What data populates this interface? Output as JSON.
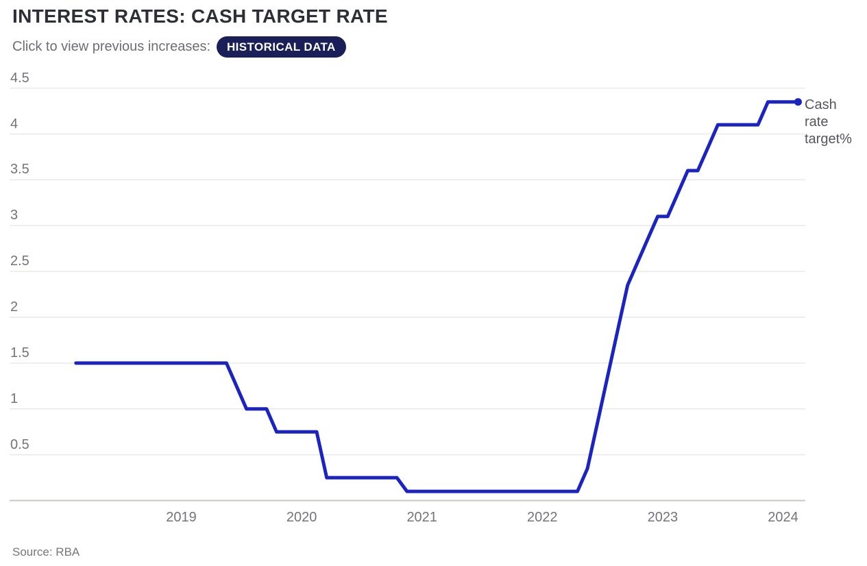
{
  "header": {
    "title": "INTEREST RATES: CASH TARGET RATE",
    "subtitle": "Click to view previous increases:",
    "button_label": "HISTORICAL DATA"
  },
  "annotation": {
    "label": "Cash rate target%",
    "lines": [
      "Cash",
      "rate",
      "target%"
    ]
  },
  "footer": {
    "source": "Source: RBA"
  },
  "colors": {
    "background": "#ffffff",
    "line": "#1b24c0",
    "dot": "#1b24c0",
    "button_bg": "#1a1f58",
    "button_text": "#ffffff",
    "title_text": "#2e2e36",
    "subtitle_text": "#6d6d75",
    "tick_label": "#73737b",
    "annotation_text": "#54545c",
    "source_text": "#75757d",
    "gridline": "#e9e9e6",
    "axis_line": "#c9c9c0"
  },
  "chart_data": {
    "type": "line",
    "title": "Interest rates: cash target rate",
    "xlabel": "",
    "ylabel": "Cash rate target %",
    "unit": "%",
    "ylim": [
      0,
      4.5
    ],
    "grid": true,
    "legend_position": "right-annotation",
    "x_ticks": [
      "2019",
      "2020",
      "2021",
      "2022",
      "2023",
      "2024"
    ],
    "y_ticks": [
      "0.5",
      "1",
      "1.5",
      "2",
      "2.5",
      "3",
      "3.5",
      "4",
      "4.5"
    ],
    "series": [
      {
        "name": "Cash rate target%",
        "points": [
          [
            "2018-02",
            1.5
          ],
          [
            "2018-03",
            1.5
          ],
          [
            "2018-04",
            1.5
          ],
          [
            "2018-05",
            1.5
          ],
          [
            "2018-06",
            1.5
          ],
          [
            "2018-07",
            1.5
          ],
          [
            "2018-08",
            1.5
          ],
          [
            "2018-09",
            1.5
          ],
          [
            "2018-10",
            1.5
          ],
          [
            "2018-11",
            1.5
          ],
          [
            "2018-12",
            1.5
          ],
          [
            "2019-01",
            1.5
          ],
          [
            "2019-02",
            1.5
          ],
          [
            "2019-03",
            1.5
          ],
          [
            "2019-04",
            1.5
          ],
          [
            "2019-05",
            1.5
          ],
          [
            "2019-06",
            1.25
          ],
          [
            "2019-07",
            1.0
          ],
          [
            "2019-08",
            1.0
          ],
          [
            "2019-09",
            1.0
          ],
          [
            "2019-10",
            0.75
          ],
          [
            "2019-11",
            0.75
          ],
          [
            "2019-12",
            0.75
          ],
          [
            "2020-01",
            0.75
          ],
          [
            "2020-02",
            0.75
          ],
          [
            "2020-03",
            0.25
          ],
          [
            "2020-04",
            0.25
          ],
          [
            "2020-05",
            0.25
          ],
          [
            "2020-06",
            0.25
          ],
          [
            "2020-07",
            0.25
          ],
          [
            "2020-08",
            0.25
          ],
          [
            "2020-09",
            0.25
          ],
          [
            "2020-10",
            0.25
          ],
          [
            "2020-11",
            0.1
          ],
          [
            "2020-12",
            0.1
          ],
          [
            "2021-01",
            0.1
          ],
          [
            "2021-02",
            0.1
          ],
          [
            "2021-03",
            0.1
          ],
          [
            "2021-04",
            0.1
          ],
          [
            "2021-05",
            0.1
          ],
          [
            "2021-06",
            0.1
          ],
          [
            "2021-07",
            0.1
          ],
          [
            "2021-08",
            0.1
          ],
          [
            "2021-09",
            0.1
          ],
          [
            "2021-10",
            0.1
          ],
          [
            "2021-11",
            0.1
          ],
          [
            "2021-12",
            0.1
          ],
          [
            "2022-01",
            0.1
          ],
          [
            "2022-02",
            0.1
          ],
          [
            "2022-03",
            0.1
          ],
          [
            "2022-04",
            0.1
          ],
          [
            "2022-05",
            0.35
          ],
          [
            "2022-06",
            0.85
          ],
          [
            "2022-07",
            1.35
          ],
          [
            "2022-08",
            1.85
          ],
          [
            "2022-09",
            2.35
          ],
          [
            "2022-10",
            2.6
          ],
          [
            "2022-11",
            2.85
          ],
          [
            "2022-12",
            3.1
          ],
          [
            "2023-01",
            3.1
          ],
          [
            "2023-02",
            3.35
          ],
          [
            "2023-03",
            3.6
          ],
          [
            "2023-04",
            3.6
          ],
          [
            "2023-05",
            3.85
          ],
          [
            "2023-06",
            4.1
          ],
          [
            "2023-07",
            4.1
          ],
          [
            "2023-08",
            4.1
          ],
          [
            "2023-09",
            4.1
          ],
          [
            "2023-10",
            4.1
          ],
          [
            "2023-11",
            4.35
          ],
          [
            "2023-12",
            4.35
          ],
          [
            "2024-01",
            4.35
          ],
          [
            "2024-02",
            4.35
          ]
        ]
      }
    ]
  }
}
